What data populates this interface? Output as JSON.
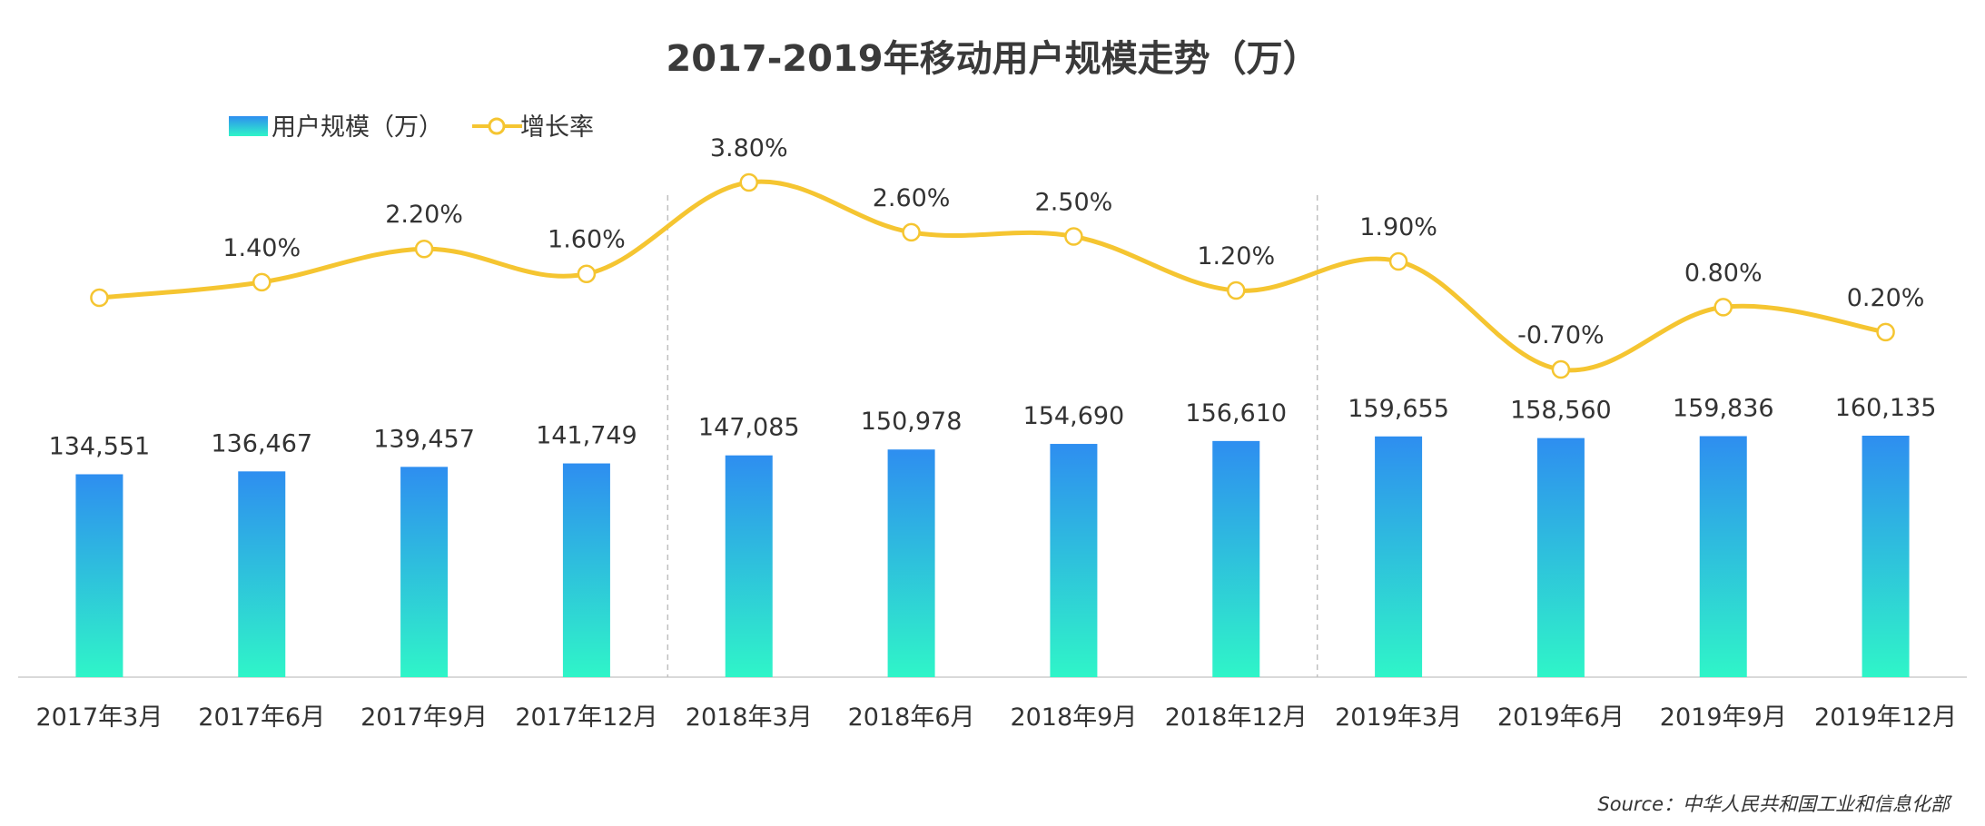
{
  "chart_data": {
    "type": "bar",
    "title": "2017-2019年移动用户规模走势（万）",
    "categories": [
      "2017年3月",
      "2017年6月",
      "2017年9月",
      "2017年12月",
      "2018年3月",
      "2018年6月",
      "2018年9月",
      "2018年12月",
      "2019年3月",
      "2019年6月",
      "2019年9月",
      "2019年12月"
    ],
    "series": [
      {
        "name": "用户规模（万）",
        "type": "bar",
        "values": [
          134551,
          136467,
          139457,
          141749,
          147085,
          150978,
          154690,
          156610,
          159655,
          158560,
          159836,
          160135
        ],
        "labels": [
          "134,551",
          "136,467",
          "139,457",
          "141,749",
          "147,085",
          "150,978",
          "154,690",
          "156,610",
          "159,655",
          "158,560",
          "159,836",
          "160,135"
        ],
        "color_top": "#2e8ef0",
        "color_bottom": "#2ff5c8"
      },
      {
        "name": "增长率",
        "type": "line",
        "values": [
          null,
          1.4,
          2.2,
          1.6,
          3.8,
          2.6,
          2.5,
          1.2,
          1.9,
          -0.7,
          0.8,
          0.2
        ],
        "labels": [
          "",
          "1.40%",
          "2.20%",
          "1.60%",
          "3.80%",
          "2.60%",
          "2.50%",
          "1.20%",
          "1.90%",
          "-0.70%",
          "0.80%",
          "0.20%"
        ],
        "color": "#f5c531"
      }
    ],
    "legend_position": "top-left",
    "grid": false,
    "source": "Source：中华人民共和国工业和信息化部"
  }
}
